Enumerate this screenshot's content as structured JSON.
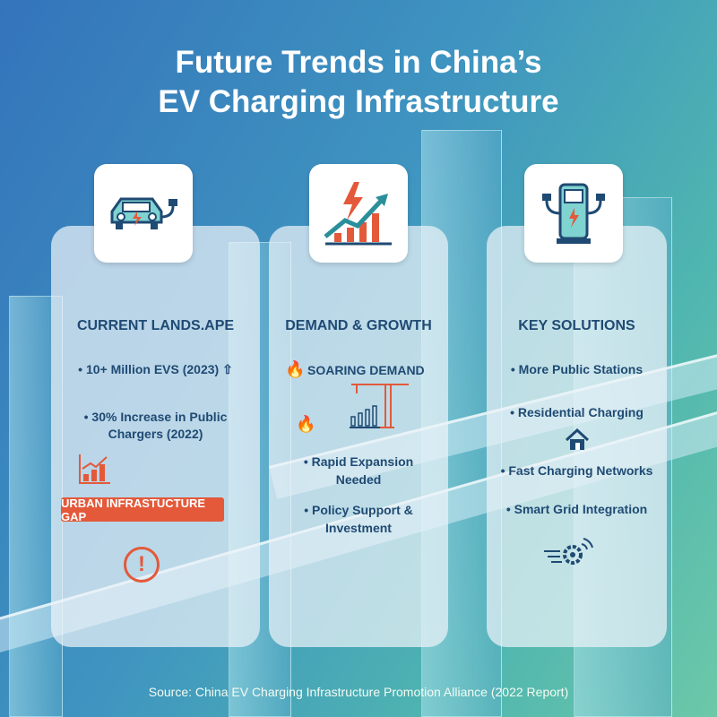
{
  "title_line1": "Future Trends in China’s",
  "title_line2": "EV Charging Infrastructure",
  "cards": [
    {
      "title": "CURRENT LANDS.APE",
      "items": [
        "10+ Million EVS (2023)",
        "30% Increase in Public",
        "Chargers (2022)"
      ],
      "badge": "URBAN INFRASTUCTURE GAP"
    },
    {
      "title": "DEMAND & GROWTH",
      "items": [
        "SOARING DEMAND",
        "Rapid Expansion",
        "Needed",
        "Policy Support &",
        "Investment"
      ]
    },
    {
      "title": "KEY SOLUTIONS",
      "items": [
        "More Public Stations",
        "Residential Charging",
        "Fast Charging Networks",
        "Smart Grid Integration"
      ]
    }
  ],
  "source": "Source: China EV Charging Infrastructure Promotion Alliance (2022 Report)",
  "colors": {
    "accent": "#e3593a",
    "text": "#1f4a73",
    "icon": "#2a8f9a"
  }
}
